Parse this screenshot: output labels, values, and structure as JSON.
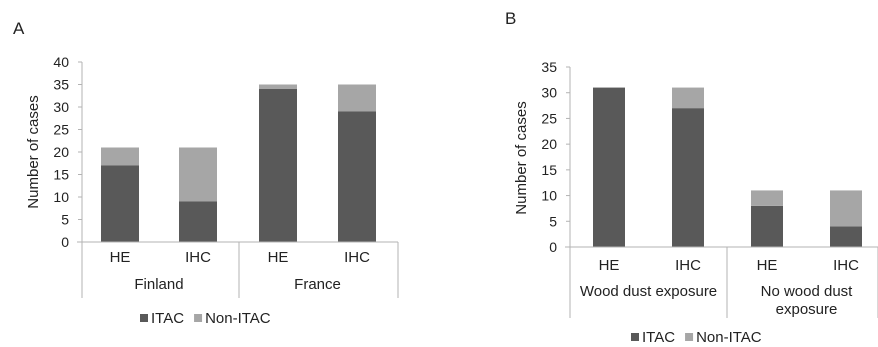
{
  "colors": {
    "itac": "#595959",
    "non_itac": "#a6a6a6"
  },
  "chart_data": [
    {
      "panel": "A",
      "type": "bar",
      "stacked": true,
      "categories": [
        "HE",
        "IHC",
        "HE",
        "IHC"
      ],
      "groups": [
        {
          "label": "Finland",
          "categories": [
            0,
            1
          ]
        },
        {
          "label": "France",
          "categories": [
            2,
            3
          ]
        }
      ],
      "series": [
        {
          "name": "ITAC",
          "values": [
            17,
            9,
            34,
            29
          ]
        },
        {
          "name": "Non-ITAC",
          "values": [
            4,
            12,
            1,
            6
          ]
        }
      ],
      "ylabel": "Number of cases",
      "ylim": [
        0,
        40
      ],
      "yticks": [
        "0",
        "5",
        "10",
        "15",
        "20",
        "25",
        "30",
        "35",
        "40"
      ],
      "legend_position": "bottom",
      "grid": false
    },
    {
      "panel": "B",
      "type": "bar",
      "stacked": true,
      "categories": [
        "HE",
        "IHC",
        "HE",
        "IHC"
      ],
      "groups": [
        {
          "label": "Wood dust exposure",
          "label_lines": [
            "Wood dust exposure"
          ],
          "categories": [
            0,
            1
          ]
        },
        {
          "label": "No wood dust exposure",
          "label_lines": [
            "No wood dust",
            "exposure"
          ],
          "categories": [
            2,
            3
          ]
        }
      ],
      "series": [
        {
          "name": "ITAC",
          "values": [
            31,
            27,
            8,
            4
          ]
        },
        {
          "name": "Non-ITAC",
          "values": [
            0,
            4,
            3,
            7
          ]
        }
      ],
      "ylabel": "Number of cases",
      "ylim": [
        0,
        35
      ],
      "yticks": [
        "0",
        "5",
        "10",
        "15",
        "20",
        "25",
        "30",
        "35"
      ],
      "legend_position": "bottom",
      "grid": false
    }
  ]
}
